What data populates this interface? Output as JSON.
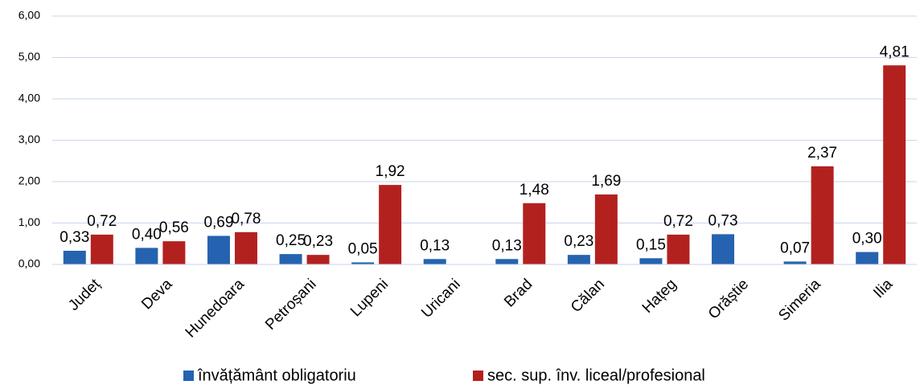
{
  "chart_data": {
    "type": "bar",
    "categories": [
      "Județ",
      "Deva",
      "Hunedoara",
      "Petroșani",
      "Lupeni",
      "Uricani",
      "Brad",
      "Călan",
      "Hațeg",
      "Orăștie",
      "Simeria",
      "Ilia"
    ],
    "series": [
      {
        "name": "învățământ obligatoriu",
        "color": "#2563b0",
        "values": [
          0.33,
          0.4,
          0.69,
          0.25,
          0.05,
          0.13,
          0.13,
          0.23,
          0.15,
          0.73,
          0.07,
          0.3
        ],
        "value_labels": [
          "0,33",
          "0,40",
          "0,69",
          "0,25",
          "0,05",
          "0,13",
          "0,13",
          "0,23",
          "0,15",
          "0,73",
          "0,07",
          "0,30"
        ]
      },
      {
        "name": "sec. sup. înv. liceal/profesional",
        "color": "#b3211f",
        "values": [
          0.72,
          0.56,
          0.78,
          0.23,
          1.92,
          null,
          1.48,
          1.69,
          0.72,
          null,
          2.37,
          4.81
        ],
        "value_labels": [
          "0,72",
          "0,56",
          "0,78",
          "0,23",
          "1,92",
          null,
          "1,48",
          "1,69",
          "0,72",
          null,
          "2,37",
          "4,81"
        ]
      }
    ],
    "ylim": [
      0,
      6
    ],
    "yticks": [
      {
        "value": 0,
        "label": "0,00"
      },
      {
        "value": 1,
        "label": "1,00"
      },
      {
        "value": 2,
        "label": "2,00"
      },
      {
        "value": 3,
        "label": "3,00"
      },
      {
        "value": 4,
        "label": "4,00"
      },
      {
        "value": 5,
        "label": "5,00"
      },
      {
        "value": 6,
        "label": "6,00"
      }
    ],
    "grid": true,
    "legend": "bottom"
  }
}
